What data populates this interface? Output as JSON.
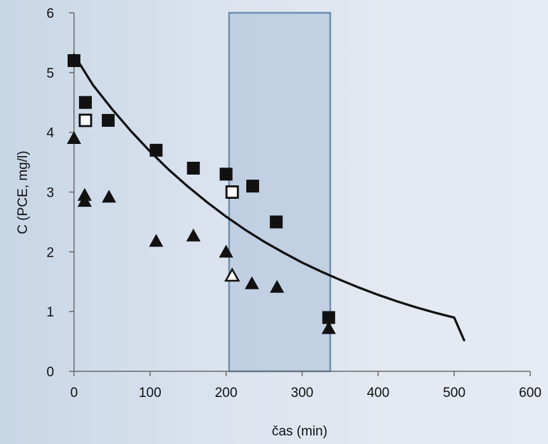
{
  "chart_data": {
    "type": "scatter",
    "xlabel": "čas (min)",
    "ylabel": "C (PCE, mg/l)",
    "xlim": [
      0,
      600
    ],
    "ylim": [
      0,
      6
    ],
    "xticks": [
      0,
      100,
      200,
      300,
      400,
      500,
      600
    ],
    "yticks": [
      0,
      1,
      2,
      3,
      4,
      5,
      6
    ],
    "grid": false,
    "legend": "none",
    "highlight_region": {
      "x": [
        204,
        337
      ],
      "color": "#b7c9de",
      "border": "#6f8fb5"
    },
    "series": [
      {
        "marker": "filled-square",
        "color": "#111111",
        "points": [
          [
            0,
            5.2
          ],
          [
            15,
            4.5
          ],
          [
            45,
            4.2
          ],
          [
            108,
            3.7
          ],
          [
            157,
            3.4
          ],
          [
            200,
            3.3
          ],
          [
            235,
            3.1
          ],
          [
            266,
            2.5
          ],
          [
            335,
            0.9
          ]
        ]
      },
      {
        "marker": "open-square",
        "color": "#111111",
        "points": [
          [
            15,
            4.2
          ],
          [
            208,
            3.0
          ]
        ]
      },
      {
        "marker": "filled-triangle",
        "color": "#111111",
        "points": [
          [
            0,
            3.9
          ],
          [
            14,
            2.95
          ],
          [
            14,
            2.85
          ],
          [
            46,
            2.92
          ],
          [
            108,
            2.18
          ],
          [
            157,
            2.27
          ],
          [
            200,
            2.0
          ],
          [
            234,
            1.47
          ],
          [
            267,
            1.41
          ],
          [
            335,
            0.72
          ]
        ]
      },
      {
        "marker": "open-triangle",
        "color": "#111111",
        "points": [
          [
            208,
            1.6
          ]
        ]
      },
      {
        "marker": "line",
        "color": "#111111",
        "points": [
          [
            0,
            5.3
          ],
          [
            25,
            4.79
          ],
          [
            50,
            4.39
          ],
          [
            75,
            4.02
          ],
          [
            100,
            3.68
          ],
          [
            125,
            3.37
          ],
          [
            150,
            3.09
          ],
          [
            175,
            2.83
          ],
          [
            200,
            2.59
          ],
          [
            225,
            2.37
          ],
          [
            250,
            2.17
          ],
          [
            275,
            1.99
          ],
          [
            300,
            1.82
          ],
          [
            325,
            1.67
          ],
          [
            350,
            1.53
          ],
          [
            375,
            1.4
          ],
          [
            400,
            1.28
          ],
          [
            425,
            1.17
          ],
          [
            450,
            1.07
          ],
          [
            475,
            0.98
          ],
          [
            500,
            0.9
          ],
          [
            513,
            0.52
          ]
        ]
      }
    ]
  }
}
